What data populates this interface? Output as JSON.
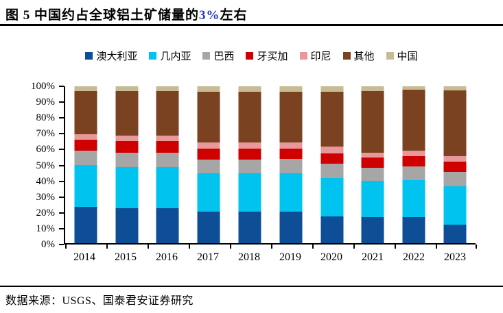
{
  "title": {
    "part1": "图 5 中国约占全球铝土矿储量的",
    "highlight": "3%",
    "part2": "左右",
    "highlight_color": "#2636c2"
  },
  "source": {
    "text": "数据来源：USGS、国泰君安证券研究"
  },
  "chart_data": {
    "type": "bar",
    "stacked": true,
    "unit": "percent of world bauxite reserves",
    "title": "中国约占全球铝土矿储量的3%左右",
    "xlabel": "",
    "ylabel": "",
    "ylim": [
      0,
      100
    ],
    "ytick_step": 10,
    "ytick_labels": [
      "0%",
      "10%",
      "20%",
      "30%",
      "40%",
      "50%",
      "60%",
      "70%",
      "80%",
      "90%",
      "100%"
    ],
    "grid": false,
    "legend_position": "top",
    "categories": [
      "2014",
      "2015",
      "2016",
      "2017",
      "2018",
      "2019",
      "2020",
      "2021",
      "2022",
      "2023"
    ],
    "series": [
      {
        "name": "澳大利亚",
        "color": "#0d4e96",
        "values": [
          23.2,
          22.1,
          22.1,
          20.0,
          20.0,
          20.0,
          17.0,
          16.6,
          16.5,
          11.7
        ]
      },
      {
        "name": "几内亚",
        "color": "#00c3f0",
        "values": [
          26.4,
          26.4,
          26.4,
          24.7,
          24.7,
          24.7,
          24.7,
          23.1,
          23.9,
          24.7
        ]
      },
      {
        "name": "巴西",
        "color": "#a6a6a6",
        "values": [
          9.3,
          9.3,
          9.3,
          8.7,
          8.7,
          9.0,
          9.0,
          8.4,
          8.7,
          9.0
        ]
      },
      {
        "name": "牙买加",
        "color": "#ce0000",
        "values": [
          7.1,
          7.1,
          7.1,
          6.7,
          6.7,
          6.7,
          6.7,
          6.3,
          6.5,
          6.7
        ]
      },
      {
        "name": "印尼",
        "color": "#e8989b",
        "values": [
          3.6,
          3.6,
          3.6,
          4.0,
          4.0,
          4.0,
          4.0,
          3.1,
          3.2,
          3.3
        ]
      },
      {
        "name": "其他",
        "color": "#7b4222",
        "values": [
          27.4,
          28.5,
          28.5,
          32.6,
          32.6,
          32.3,
          35.3,
          39.4,
          38.9,
          42.2
        ]
      },
      {
        "name": "中国",
        "color": "#c6bb92",
        "values": [
          3.0,
          3.0,
          3.0,
          3.3,
          3.3,
          3.3,
          3.3,
          3.1,
          2.3,
          2.4
        ]
      }
    ]
  }
}
